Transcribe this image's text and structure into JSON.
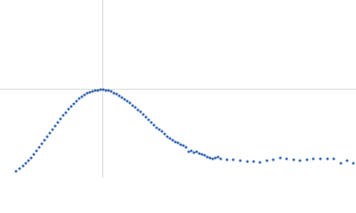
{
  "chart_data": {
    "type": "scatter",
    "xlim": [
      0,
      400
    ],
    "ylim": [
      0,
      200
    ],
    "vlines": [
      115
    ],
    "hlines": [
      100
    ],
    "series": [
      {
        "color": "#3a6ab5",
        "x": [
          18,
          22,
          26,
          29,
          32,
          35,
          38,
          41,
          44,
          47,
          50,
          53,
          56,
          59,
          62,
          65,
          68,
          71,
          74,
          77,
          80,
          83,
          86,
          89,
          92,
          95,
          98,
          101,
          104,
          107,
          110,
          113,
          116,
          119,
          122,
          125,
          128,
          131,
          134,
          137,
          140,
          143,
          146,
          149,
          152,
          155,
          158,
          161,
          164,
          167,
          170,
          173,
          176,
          179,
          182,
          185,
          188,
          191,
          194,
          197,
          200,
          203,
          206,
          209,
          212,
          215,
          218,
          221,
          224,
          227,
          230,
          233,
          236,
          239,
          242,
          245,
          248,
          255,
          262,
          270,
          278,
          285,
          292,
          300,
          307,
          315,
          322,
          330,
          337,
          345,
          352,
          360,
          368,
          375,
          383,
          390,
          397
        ],
        "values": [
          7,
          10,
          13,
          16,
          19,
          22,
          26,
          30,
          34,
          38,
          42,
          46,
          50,
          54,
          58,
          62,
          66,
          70,
          73,
          77,
          80,
          83,
          86,
          89,
          91,
          93,
          95,
          96,
          97,
          98,
          98,
          99,
          99,
          98,
          98,
          97,
          95,
          94,
          92,
          90,
          88,
          86,
          84,
          81,
          79,
          76,
          74,
          71,
          68,
          65,
          62,
          59,
          56,
          54,
          52,
          49,
          46,
          44,
          42,
          40,
          39,
          37,
          36,
          34,
          29,
          30,
          28,
          29,
          27,
          26,
          25,
          23,
          22,
          21,
          22,
          23,
          21,
          20,
          20,
          19,
          18,
          18,
          17,
          19,
          20,
          22,
          21,
          20,
          19,
          20,
          21,
          21,
          21,
          21,
          16,
          19,
          16
        ]
      }
    ]
  }
}
